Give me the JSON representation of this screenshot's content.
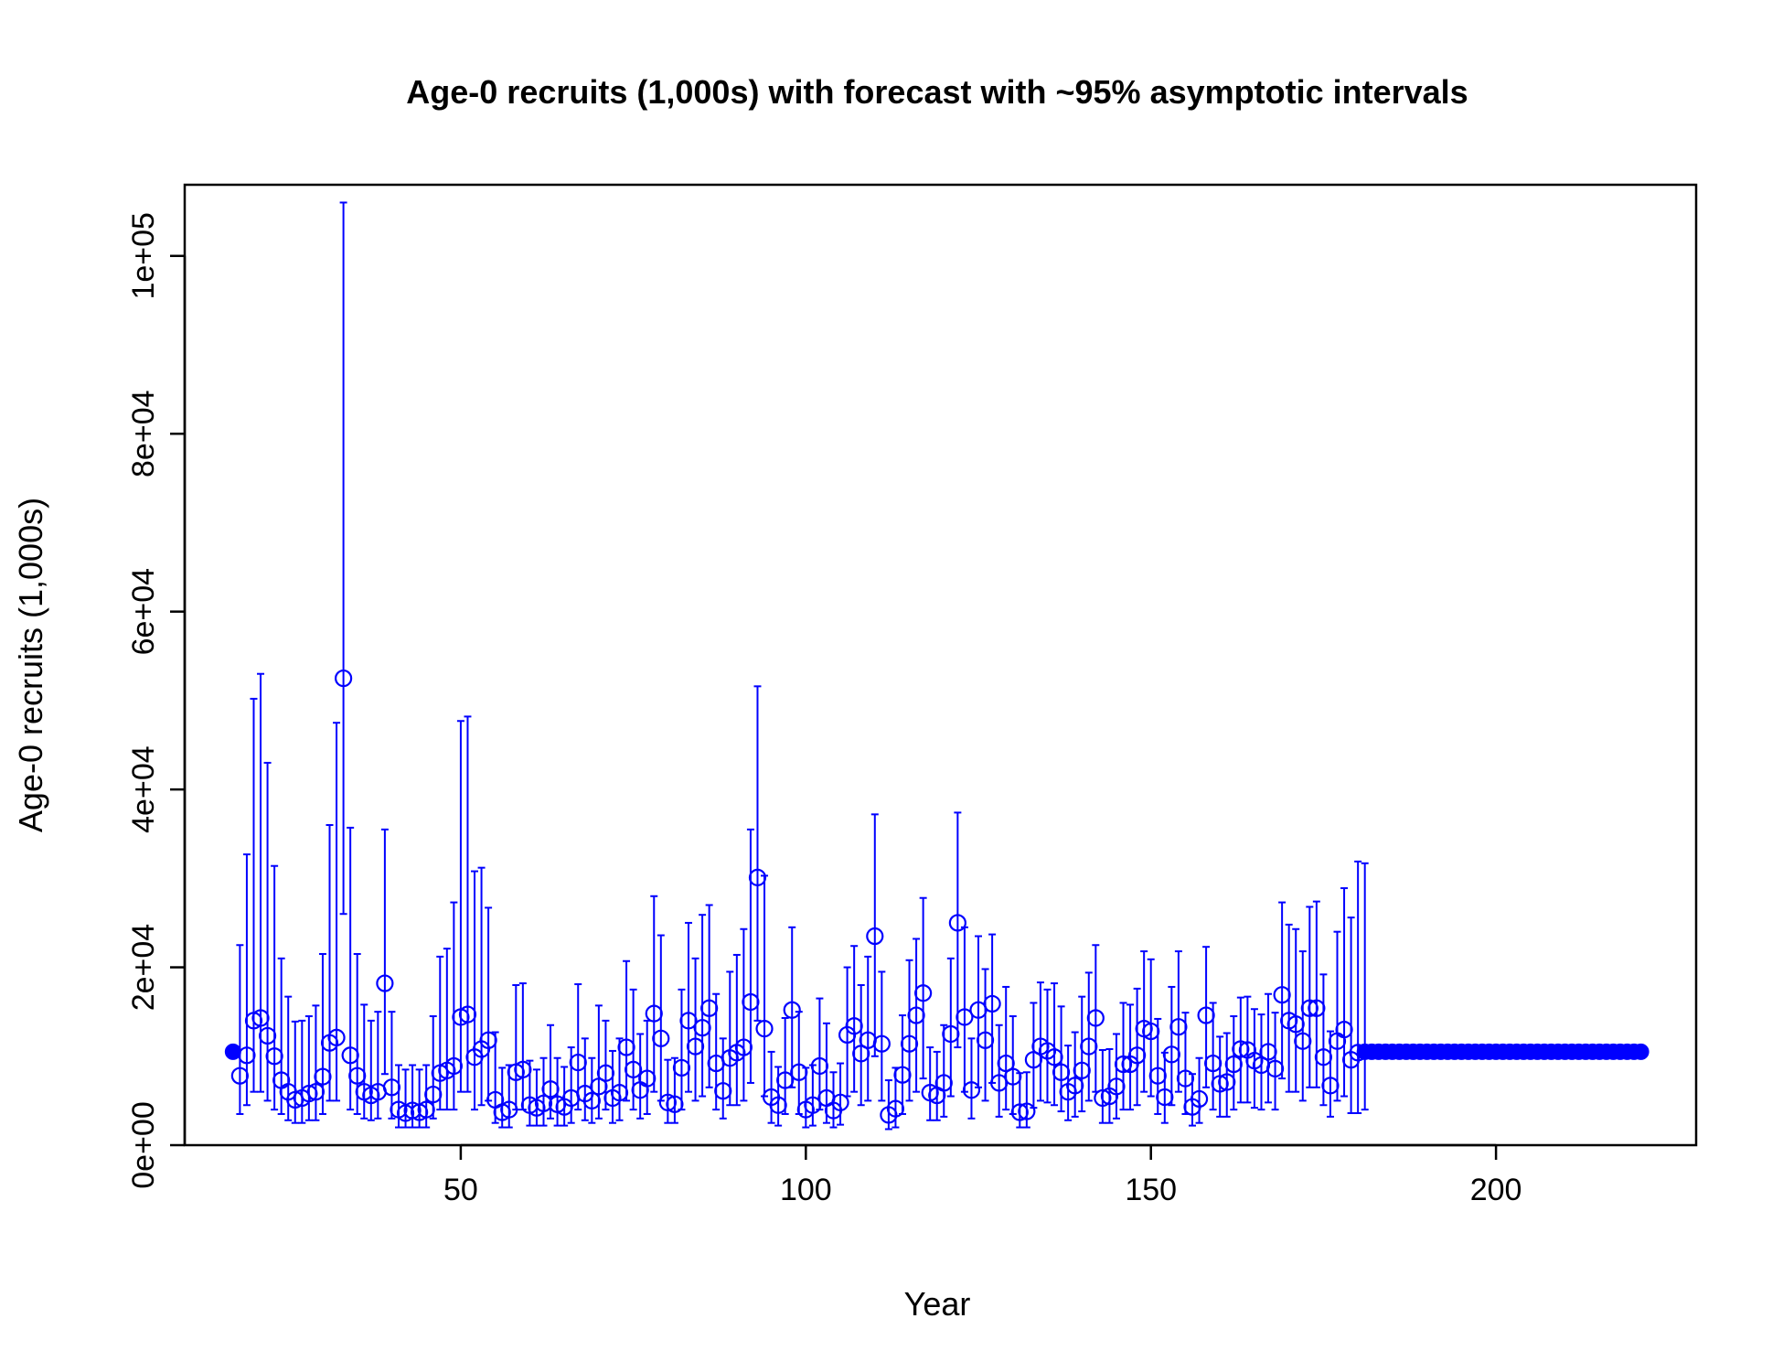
{
  "chart_data": {
    "type": "scatter",
    "title": "Age-0 recruits (1,000s) with forecast with ~95% asymptotic intervals",
    "xlabel": "Year",
    "ylabel": "Age-0 recruits (1,000s)",
    "xlim": [
      10,
      229
    ],
    "ylim": [
      0,
      108000
    ],
    "x_ticks": [
      50,
      100,
      150,
      200
    ],
    "x_tick_labels": [
      "50",
      "100",
      "150",
      "200"
    ],
    "y_ticks": [
      0,
      20000,
      40000,
      60000,
      80000,
      100000
    ],
    "y_tick_labels": [
      "0e+00",
      "2e+04",
      "4e+04",
      "6e+04",
      "8e+04",
      "1e+05"
    ],
    "grid": false,
    "legend": "none",
    "color": "#0000ff",
    "virgin": {
      "x": 17,
      "y": 10500
    },
    "estimated": {
      "x_start": 18,
      "y": [
        7800,
        10100,
        14000,
        14300,
        12300,
        10000,
        7300,
        6000,
        5100,
        5300,
        5800,
        6000,
        7700,
        11500,
        12100,
        52500,
        10100,
        7800,
        6000,
        5600,
        6000,
        18200,
        6500,
        4000,
        3600,
        3900,
        3700,
        4000,
        5700,
        8100,
        8400,
        8900,
        14400,
        14700,
        9900,
        10800,
        11800,
        5100,
        3700,
        4000,
        8200,
        8500,
        4500,
        4200,
        4700,
        6300,
        4600,
        4300,
        5300,
        9300,
        5800,
        5000,
        6600,
        8100,
        5300,
        5900,
        11000,
        8500,
        6200,
        7500,
        14800,
        12000,
        4800,
        4600,
        8700,
        14000,
        11100,
        13200,
        15400,
        9200,
        6100,
        9800,
        10400,
        11000,
        16100,
        30100,
        13100,
        5400,
        4500,
        7300,
        15200,
        8200,
        4000,
        4500,
        8900,
        5300,
        3900,
        4800,
        12400,
        13400,
        10300,
        11800,
        23500,
        11400,
        3400,
        4100,
        7900,
        11400,
        14600,
        17100,
        5900,
        5600,
        7000,
        12500,
        25000,
        14400,
        6200,
        15200,
        11800,
        15900,
        7000,
        9200,
        7700,
        3700,
        3800,
        9600,
        11100,
        10600,
        9900,
        8200,
        6000,
        6700,
        8400,
        11100,
        14300,
        5300,
        5500,
        6600,
        9100,
        9100,
        10100,
        13100,
        12800,
        7800,
        5400,
        10200,
        13300,
        7500,
        4300,
        5200,
        14600,
        9200,
        6900,
        7100,
        9100,
        10800,
        10700,
        9500,
        9000,
        10500,
        8600,
        16900,
        14000,
        13600,
        11700,
        15400,
        15400,
        9900,
        6700,
        11700,
        13000,
        9600,
        10400
      ],
      "lower": [
        3500,
        4500,
        6000,
        6000,
        5000,
        4000,
        3500,
        2800,
        2500,
        2500,
        2800,
        2800,
        3500,
        5000,
        5000,
        26000,
        4000,
        3500,
        3000,
        2800,
        3000,
        8000,
        3000,
        2000,
        2000,
        2000,
        2000,
        2000,
        3000,
        4000,
        4000,
        4000,
        6000,
        6000,
        4000,
        4500,
        5000,
        2500,
        2000,
        2000,
        4000,
        4000,
        2200,
        2200,
        2200,
        3000,
        2200,
        2200,
        2500,
        4000,
        2800,
        2500,
        3000,
        4000,
        2500,
        2800,
        5000,
        4000,
        3000,
        3500,
        6000,
        5000,
        2500,
        2500,
        4000,
        6000,
        5000,
        5500,
        6500,
        4000,
        3000,
        4500,
        4500,
        5000,
        7000,
        14000,
        5500,
        2500,
        2200,
        3500,
        6500,
        3500,
        2000,
        2200,
        4000,
        2500,
        2000,
        2300,
        5500,
        6000,
        4500,
        5000,
        10000,
        5000,
        1800,
        2000,
        3500,
        5000,
        6000,
        7500,
        2800,
        2800,
        3200,
        5500,
        11000,
        6000,
        3000,
        6500,
        5000,
        7000,
        3200,
        4000,
        3500,
        2000,
        2000,
        4200,
        5000,
        4800,
        4500,
        3800,
        2800,
        3200,
        3800,
        5000,
        6000,
        2500,
        2500,
        3000,
        4000,
        4000,
        4500,
        6000,
        5500,
        3500,
        2500,
        4500,
        6000,
        3500,
        2200,
        2500,
        6500,
        4000,
        3200,
        3200,
        4000,
        4800,
        4800,
        4200,
        4000,
        4800,
        4000,
        7500,
        6000,
        6000,
        5000,
        6500,
        6500,
        4500,
        3200,
        5000,
        5500,
        3600,
        3600
      ],
      "upper": [
        22500,
        32700,
        50200,
        53000,
        43000,
        31400,
        21000,
        16700,
        13900,
        14000,
        14500,
        15700,
        21500,
        36000,
        47500,
        106000,
        35700,
        21500,
        15800,
        14000,
        15000,
        35500,
        15000,
        9000,
        8500,
        9000,
        8500,
        9000,
        14500,
        21200,
        22100,
        27300,
        47700,
        48200,
        30800,
        31200,
        26700,
        12700,
        8700,
        9000,
        18000,
        18200,
        9500,
        8500,
        9800,
        13500,
        9800,
        8800,
        11000,
        18100,
        12000,
        9800,
        15700,
        14000,
        10600,
        12000,
        20700,
        17500,
        12500,
        14000,
        28000,
        23600,
        9600,
        9800,
        17500,
        25000,
        21000,
        25900,
        27000,
        17000,
        12000,
        19500,
        21400,
        24300,
        35500,
        51600,
        30300,
        10500,
        8800,
        14300,
        24500,
        15000,
        8700,
        9000,
        16500,
        13700,
        8200,
        9200,
        20000,
        22400,
        18000,
        21200,
        37200,
        19500,
        7300,
        8700,
        14600,
        20800,
        23200,
        27800,
        11000,
        10500,
        13500,
        21000,
        37400,
        24500,
        12000,
        23500,
        19800,
        23700,
        13500,
        17800,
        14500,
        8100,
        8200,
        16000,
        18300,
        17500,
        18200,
        15600,
        11200,
        12700,
        16700,
        19400,
        22500,
        10700,
        10800,
        12500,
        16000,
        15800,
        17600,
        21800,
        20900,
        14200,
        10400,
        17800,
        21800,
        14900,
        8000,
        9800,
        22300,
        16000,
        12200,
        12600,
        14500,
        16600,
        16700,
        15300,
        14700,
        17000,
        14900,
        27300,
        24800,
        24300,
        21800,
        26800,
        27400,
        19200,
        12800,
        24000,
        28900,
        25600,
        31900
      ]
    },
    "forecast": {
      "x_start": 181,
      "x_end": 221,
      "y": 10500,
      "upper_first": 31700
    }
  }
}
